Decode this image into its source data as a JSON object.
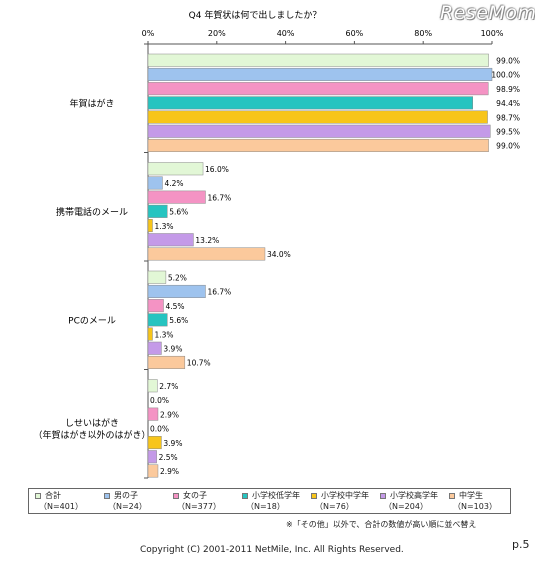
{
  "logo": "ReseMom",
  "chart_data": {
    "type": "bar",
    "orientation": "horizontal",
    "title": "Q4 年賀状は何で出しましたか？",
    "x_ticks": [
      "0%",
      "20%",
      "40%",
      "60%",
      "80%",
      "100%"
    ],
    "xlim": [
      0,
      100
    ],
    "categories": [
      "年賀はがき",
      "携帯電話のメール",
      "PCのメール",
      "しせいはがき\n（年賀はがき以外のはがき）"
    ],
    "series": [
      {
        "name": "合計",
        "n": "（N=401）",
        "color": "#e2f7d6",
        "values": [
          99.0,
          16.0,
          5.2,
          2.7
        ]
      },
      {
        "name": "男の子",
        "n": "（N=24）",
        "color": "#9ec3ee",
        "values": [
          100.0,
          4.2,
          16.7,
          0.0
        ]
      },
      {
        "name": "女の子",
        "n": "（N=377）",
        "color": "#f493c4",
        "values": [
          98.9,
          16.7,
          4.5,
          2.9
        ]
      },
      {
        "name": "小学校低学年",
        "n": "（N=18）",
        "color": "#26c4c0",
        "values": [
          94.4,
          5.6,
          5.6,
          0.0
        ]
      },
      {
        "name": "小学校中学年",
        "n": "（N=76）",
        "color": "#f7c51a",
        "values": [
          98.7,
          1.3,
          1.3,
          3.9
        ]
      },
      {
        "name": "小学校高学年",
        "n": "（N=204）",
        "color": "#c49ae8",
        "values": [
          99.5,
          13.2,
          3.9,
          2.5
        ]
      },
      {
        "name": "中学生",
        "n": "（N=103）",
        "color": "#fbc99c",
        "values": [
          99.0,
          34.0,
          10.7,
          2.9
        ]
      }
    ],
    "value_labels": [
      [
        "99.0%",
        "16.0%",
        "5.2%",
        "2.7%"
      ],
      [
        "100.0%",
        "4.2%",
        "16.7%",
        "0.0%"
      ],
      [
        "98.9%",
        "16.7%",
        "4.5%",
        "2.9%"
      ],
      [
        "94.4%",
        "5.6%",
        "5.6%",
        "0.0%"
      ],
      [
        "98.7%",
        "1.3%",
        "1.3%",
        "3.9%"
      ],
      [
        "99.5%",
        "13.2%",
        "3.9%",
        "2.5%"
      ],
      [
        "99.0%",
        "34.0%",
        "10.7%",
        "2.9%"
      ]
    ],
    "legend_position": "bottom",
    "grid": false
  },
  "note": "※「その他」以外で、合計の数値が高い順に並べ替え",
  "copyright": "Copyright (C) 2001-2011 NetMile, Inc. All Rights Reserved.",
  "page_number": "p.5"
}
